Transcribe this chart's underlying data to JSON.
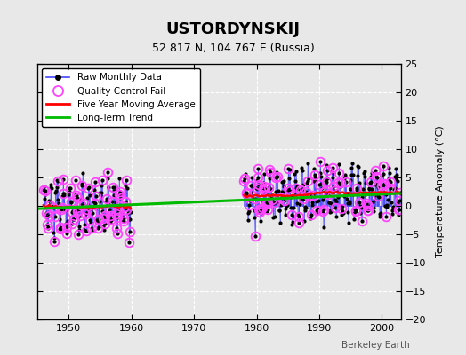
{
  "title": "USTORDYNSKIJ",
  "subtitle": "52.817 N, 104.767 E (Russia)",
  "ylabel": "Temperature Anomaly (°C)",
  "credit": "Berkeley Earth",
  "ylim": [
    -20,
    25
  ],
  "yticks": [
    -20,
    -15,
    -10,
    -5,
    0,
    5,
    10,
    15,
    20,
    25
  ],
  "xlim": [
    1945,
    2003
  ],
  "xticks": [
    1950,
    1960,
    1970,
    1980,
    1990,
    2000
  ],
  "bg_color": "#e8e8e8",
  "plot_bg": "#e8e8e8",
  "raw_color": "#4444ff",
  "qc_color": "#ff44ff",
  "moving_avg_color": "#ff0000",
  "trend_color": "#00bb00",
  "trend_x": [
    1945,
    2003
  ],
  "trend_y": [
    -0.5,
    2.2
  ]
}
